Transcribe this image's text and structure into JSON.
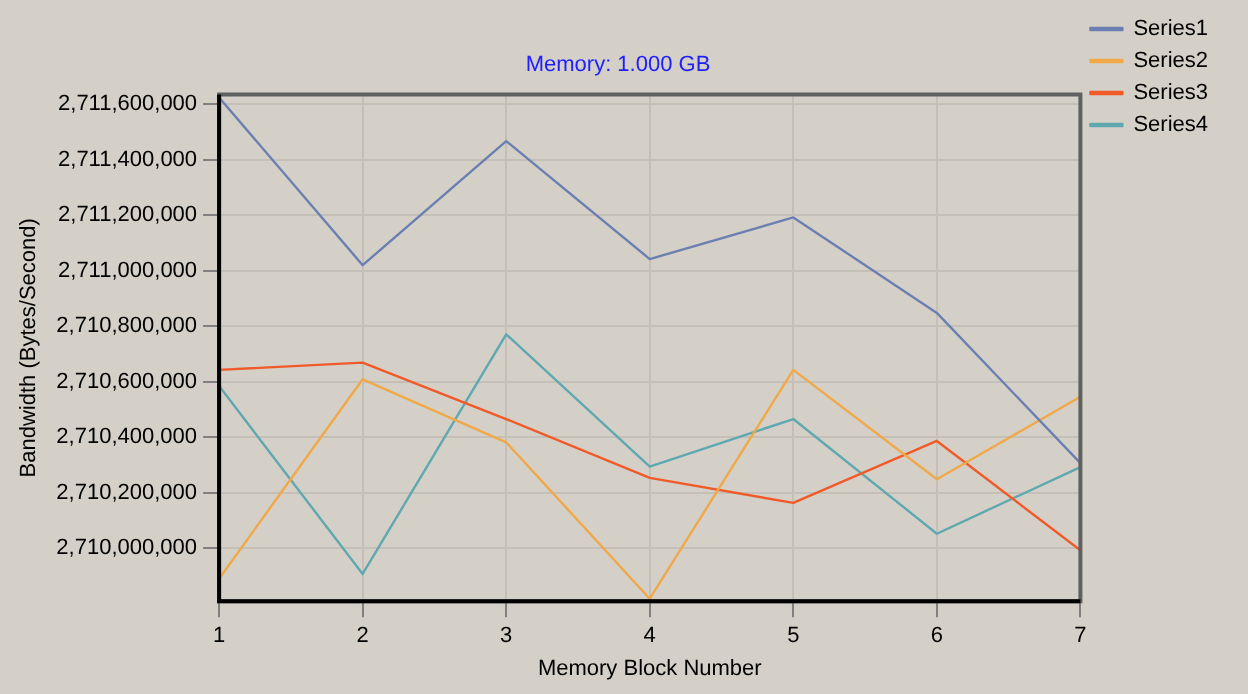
{
  "chart_data": {
    "type": "line",
    "title": "Memory: 1.000 GB",
    "xlabel": "Memory Block Number",
    "ylabel": "Bandwidth (Bytes/Second)",
    "x": [
      1,
      2,
      3,
      4,
      5,
      6,
      7
    ],
    "xlim": [
      1,
      7
    ],
    "xticks": [
      1,
      2,
      3,
      4,
      5,
      6,
      7
    ],
    "ylim": [
      2709810000,
      2711635000
    ],
    "yticks": [
      {
        "value": 2710000000,
        "label": "2,710,000,000"
      },
      {
        "value": 2710200000,
        "label": "2,710,200,000"
      },
      {
        "value": 2710400000,
        "label": "2,710,400,000"
      },
      {
        "value": 2710600000,
        "label": "2,710,600,000"
      },
      {
        "value": 2710800000,
        "label": "2,710,800,000"
      },
      {
        "value": 2711000000,
        "label": "2,711,000,000"
      },
      {
        "value": 2711200000,
        "label": "2,711,200,000"
      },
      {
        "value": 2711400000,
        "label": "2,711,400,000"
      },
      {
        "value": 2711600000,
        "label": "2,711,600,000"
      }
    ],
    "series": [
      {
        "name": "Series1",
        "color": "#6b80b0",
        "values": [
          2711624000,
          2711020000,
          2711467000,
          2711042000,
          2711192000,
          2710848000,
          2710307000
        ]
      },
      {
        "name": "Series2",
        "color": "#f0a848",
        "values": [
          2709891000,
          2710609000,
          2710382000,
          2709819000,
          2710643000,
          2710249000,
          2710546000
        ]
      },
      {
        "name": "Series3",
        "color": "#f05a28",
        "values": [
          2710643000,
          2710669000,
          2710466000,
          2710254000,
          2710164000,
          2710387000,
          2709993000
        ]
      },
      {
        "name": "Series4",
        "color": "#60a8b0",
        "values": [
          2710585000,
          2709908000,
          2710771000,
          2710295000,
          2710466000,
          2710053000,
          2710293000
        ]
      }
    ],
    "grid": true,
    "legend": "top right",
    "marker": "none",
    "line_style": "solid"
  }
}
